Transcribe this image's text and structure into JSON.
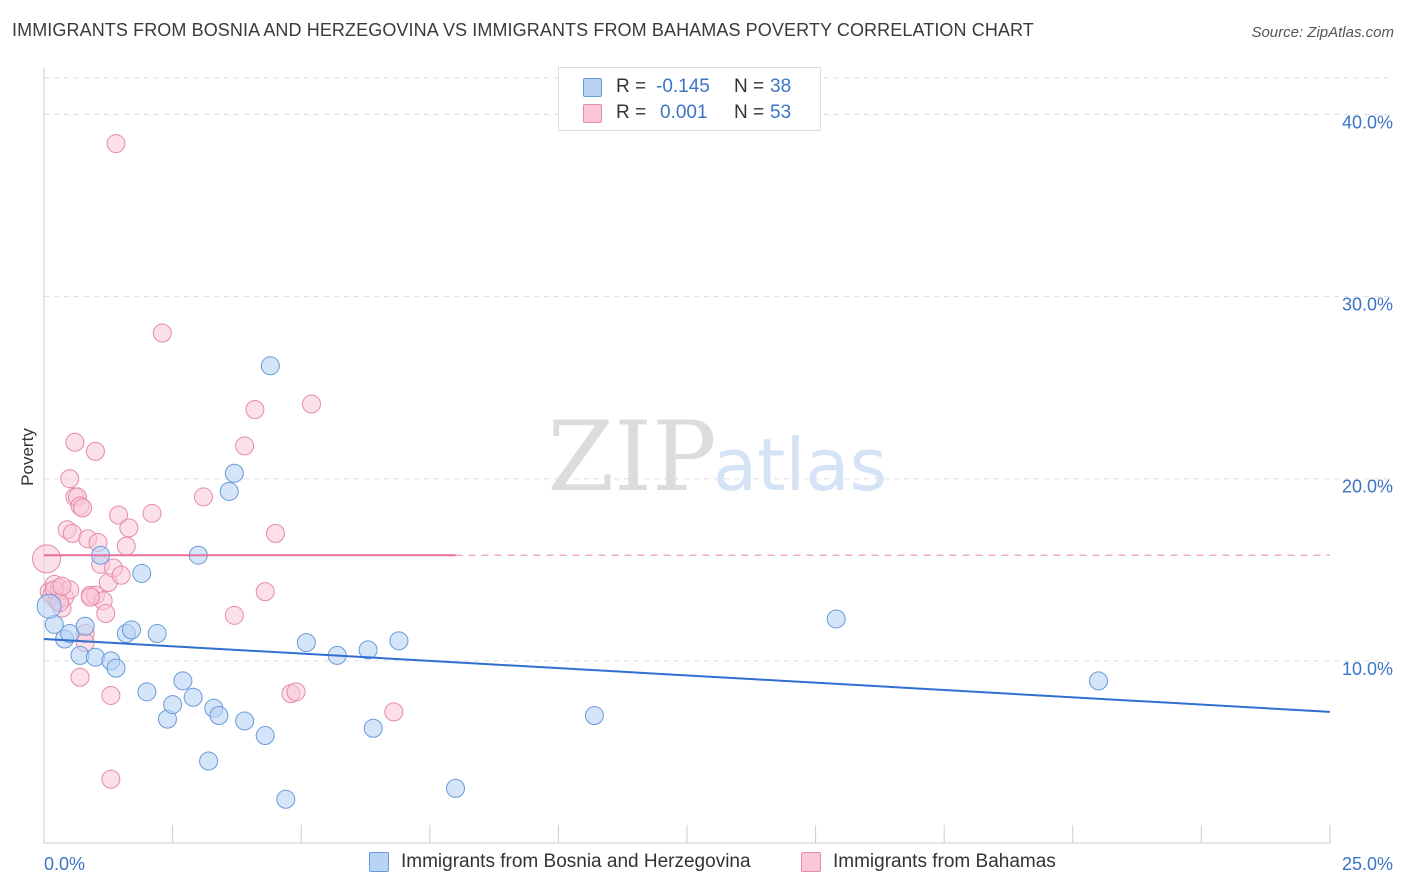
{
  "title": "IMMIGRANTS FROM BOSNIA AND HERZEGOVINA VS IMMIGRANTS FROM BAHAMAS POVERTY CORRELATION CHART",
  "source": "Source: ZipAtlas.com",
  "watermark": {
    "zip": "ZIP",
    "atlas": "atlas"
  },
  "legend": {
    "series": [
      {
        "r_label": "R = ",
        "r_value": "-0.145",
        "n_label": "N = ",
        "n_value": "38"
      },
      {
        "r_label": "R = ",
        "r_value": "0.001",
        "n_label": "N = ",
        "n_value": "53"
      }
    ]
  },
  "colors": {
    "blue_fill": "#b9d3f5",
    "blue_stroke": "#6a9ad8",
    "blue_line": "#2f6fcf",
    "pink_fill": "#f9c7d7",
    "pink_stroke": "#e58aa7",
    "pink_line": "#e8709a",
    "tick_text": "#3b74c7",
    "grid": "#dddddd"
  },
  "chart_data": {
    "type": "scatter",
    "title": "IMMIGRANTS FROM BOSNIA AND HERZEGOVINA VS IMMIGRANTS FROM BAHAMAS POVERTY CORRELATION CHART",
    "xlabel": "",
    "ylabel": "Poverty",
    "xlim": [
      0,
      25
    ],
    "ylim": [
      0,
      42
    ],
    "x_tick_labels": [
      "0.0%",
      "25.0%"
    ],
    "y_ticks": [
      10,
      20,
      30,
      40
    ],
    "y_tick_labels": [
      "10.0%",
      "20.0%",
      "30.0%",
      "40.0%"
    ],
    "grid": true,
    "series": [
      {
        "name": "Immigrants from Bosnia and Herzegovina",
        "color": "#2f6fcf",
        "trend": {
          "x": [
            0,
            25
          ],
          "y": [
            11.2,
            7.2
          ],
          "dashed_extension": false
        },
        "points": [
          {
            "x": 0.2,
            "y": 12.0
          },
          {
            "x": 0.4,
            "y": 11.2
          },
          {
            "x": 0.5,
            "y": 11.5
          },
          {
            "x": 0.7,
            "y": 10.3
          },
          {
            "x": 0.8,
            "y": 11.9
          },
          {
            "x": 1.0,
            "y": 10.2
          },
          {
            "x": 1.1,
            "y": 15.8
          },
          {
            "x": 1.3,
            "y": 10.0
          },
          {
            "x": 1.4,
            "y": 9.6
          },
          {
            "x": 1.6,
            "y": 11.5
          },
          {
            "x": 1.7,
            "y": 11.7
          },
          {
            "x": 1.9,
            "y": 14.8
          },
          {
            "x": 2.0,
            "y": 8.3
          },
          {
            "x": 2.2,
            "y": 11.5
          },
          {
            "x": 2.4,
            "y": 6.8
          },
          {
            "x": 2.5,
            "y": 7.6
          },
          {
            "x": 2.7,
            "y": 8.9
          },
          {
            "x": 2.9,
            "y": 8.0
          },
          {
            "x": 3.0,
            "y": 15.8
          },
          {
            "x": 3.2,
            "y": 4.5
          },
          {
            "x": 3.3,
            "y": 7.4
          },
          {
            "x": 3.4,
            "y": 7.0
          },
          {
            "x": 3.6,
            "y": 19.3
          },
          {
            "x": 3.7,
            "y": 20.3
          },
          {
            "x": 3.9,
            "y": 6.7
          },
          {
            "x": 4.3,
            "y": 5.9
          },
          {
            "x": 4.4,
            "y": 26.2
          },
          {
            "x": 4.7,
            "y": 2.4
          },
          {
            "x": 5.1,
            "y": 11.0
          },
          {
            "x": 5.7,
            "y": 10.3
          },
          {
            "x": 6.3,
            "y": 10.6
          },
          {
            "x": 6.4,
            "y": 6.3
          },
          {
            "x": 6.9,
            "y": 11.1
          },
          {
            "x": 8.0,
            "y": 3.0
          },
          {
            "x": 10.7,
            "y": 7.0
          },
          {
            "x": 15.4,
            "y": 12.3
          },
          {
            "x": 20.5,
            "y": 8.9
          },
          {
            "x": 0.1,
            "y": 13.0
          }
        ]
      },
      {
        "name": "Immigrants from Bahamas",
        "color": "#e8709a",
        "trend": {
          "x": [
            0,
            8.0
          ],
          "y": [
            15.8,
            15.8
          ],
          "dashed_extension": true,
          "dashed_to_x": 25
        },
        "points": [
          {
            "x": 0.05,
            "y": 15.6
          },
          {
            "x": 0.1,
            "y": 13.8
          },
          {
            "x": 0.15,
            "y": 13.6
          },
          {
            "x": 0.2,
            "y": 14.2
          },
          {
            "x": 0.25,
            "y": 13.3
          },
          {
            "x": 0.3,
            "y": 14.0
          },
          {
            "x": 0.35,
            "y": 12.9
          },
          {
            "x": 0.4,
            "y": 13.5
          },
          {
            "x": 0.45,
            "y": 17.2
          },
          {
            "x": 0.5,
            "y": 20.0
          },
          {
            "x": 0.5,
            "y": 13.9
          },
          {
            "x": 0.55,
            "y": 17.0
          },
          {
            "x": 0.6,
            "y": 19.0
          },
          {
            "x": 0.65,
            "y": 19.0
          },
          {
            "x": 0.6,
            "y": 22.0
          },
          {
            "x": 0.7,
            "y": 18.5
          },
          {
            "x": 0.7,
            "y": 9.1
          },
          {
            "x": 0.75,
            "y": 18.4
          },
          {
            "x": 0.8,
            "y": 11.5
          },
          {
            "x": 0.8,
            "y": 11.0
          },
          {
            "x": 0.85,
            "y": 16.7
          },
          {
            "x": 0.9,
            "y": 13.6
          },
          {
            "x": 1.0,
            "y": 13.6
          },
          {
            "x": 1.0,
            "y": 21.5
          },
          {
            "x": 1.05,
            "y": 16.5
          },
          {
            "x": 1.1,
            "y": 15.3
          },
          {
            "x": 1.15,
            "y": 13.3
          },
          {
            "x": 1.2,
            "y": 12.6
          },
          {
            "x": 1.25,
            "y": 14.3
          },
          {
            "x": 1.3,
            "y": 8.1
          },
          {
            "x": 1.3,
            "y": 3.5
          },
          {
            "x": 1.35,
            "y": 15.1
          },
          {
            "x": 1.4,
            "y": 38.4
          },
          {
            "x": 1.45,
            "y": 18.0
          },
          {
            "x": 1.5,
            "y": 14.7
          },
          {
            "x": 1.6,
            "y": 16.3
          },
          {
            "x": 1.65,
            "y": 17.3
          },
          {
            "x": 2.1,
            "y": 18.1
          },
          {
            "x": 2.3,
            "y": 28.0
          },
          {
            "x": 3.1,
            "y": 19.0
          },
          {
            "x": 3.7,
            "y": 12.5
          },
          {
            "x": 3.9,
            "y": 21.8
          },
          {
            "x": 4.1,
            "y": 23.8
          },
          {
            "x": 4.3,
            "y": 13.8
          },
          {
            "x": 4.5,
            "y": 17.0
          },
          {
            "x": 4.8,
            "y": 8.2
          },
          {
            "x": 4.9,
            "y": 8.3
          },
          {
            "x": 5.2,
            "y": 24.1
          },
          {
            "x": 6.8,
            "y": 7.2
          },
          {
            "x": 0.2,
            "y": 13.9
          },
          {
            "x": 0.3,
            "y": 13.2
          },
          {
            "x": 0.9,
            "y": 13.5
          },
          {
            "x": 0.35,
            "y": 14.1
          }
        ]
      }
    ]
  },
  "bottom_legend": [
    {
      "label": "Immigrants from Bosnia and Herzegovina"
    },
    {
      "label": "Immigrants from Bahamas"
    }
  ]
}
